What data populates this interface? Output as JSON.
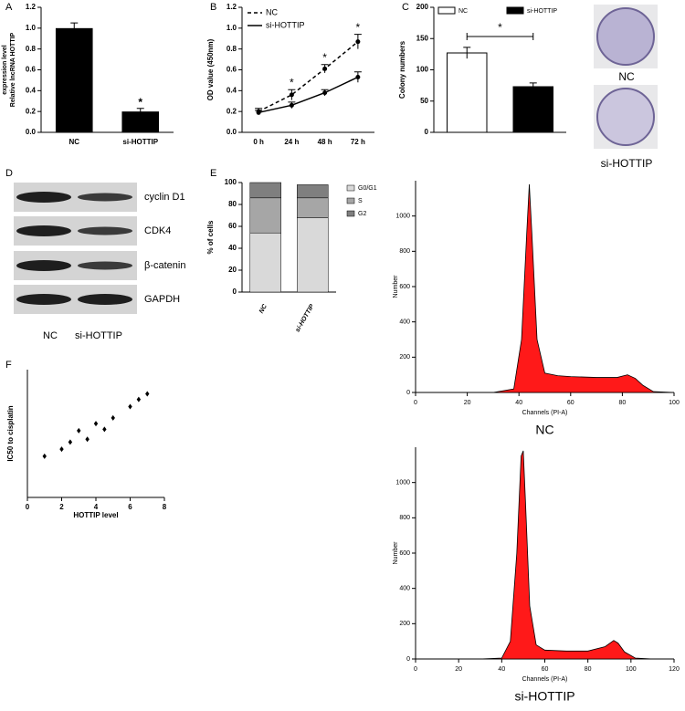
{
  "chart_data": [
    {
      "type": "bar",
      "panel": "A",
      "categories": [
        "NC",
        "si-HOTTIP"
      ],
      "values": [
        1.0,
        0.2
      ],
      "errors": [
        0.05,
        0.03
      ],
      "color": "#000000",
      "ylabel": [
        "Relative lncRNA HOTTIP",
        "expression level"
      ],
      "ylim": [
        0,
        1.2
      ],
      "yticks": [
        {
          "value": 0,
          "label": "0.0"
        },
        0.2,
        0.4,
        0.6,
        0.8,
        {
          "value": 1,
          "label": "1.0"
        },
        1.2
      ],
      "annotations": [
        null,
        "*"
      ]
    },
    {
      "type": "line",
      "panel": "B",
      "categories": [
        "0 h",
        "24 h",
        "48 h",
        "72 h"
      ],
      "series": [
        {
          "name": "NC",
          "color": "#000000",
          "dashed": true,
          "values": [
            0.2,
            0.36,
            0.61,
            0.87
          ],
          "errors": [
            0.03,
            0.05,
            0.04,
            0.07
          ]
        },
        {
          "name": "si-HOTTIP",
          "color": "#000000",
          "dashed": false,
          "values": [
            0.19,
            0.26,
            0.38,
            0.53
          ],
          "errors": [
            0.02,
            0.03,
            0.03,
            0.05
          ]
        }
      ],
      "ylabel": "OD value (450nm)",
      "ylim": [
        0,
        1.2
      ],
      "yticks": [
        {
          "value": 0,
          "label": "0.0"
        },
        0.2,
        0.4,
        0.6,
        0.8,
        {
          "value": 1,
          "label": "1.0"
        },
        1.2
      ],
      "annotations": [
        null,
        "*",
        "*",
        "*"
      ]
    },
    {
      "type": "bar",
      "panel": "C",
      "series": [
        {
          "name": "NC",
          "color": "#ffffff",
          "values": [
            127
          ],
          "errors": [
            9
          ]
        },
        {
          "name": "si-HOTTIP",
          "color": "#000000",
          "values": [
            73
          ],
          "errors": [
            6
          ]
        }
      ],
      "ylabel": "Colony numbers",
      "ylim": [
        0,
        200
      ],
      "yticks": [
        0,
        50,
        100,
        150,
        200
      ],
      "annotation": "*"
    },
    {
      "type": "stacked",
      "panel": "E",
      "categories": [
        "NC",
        "si-HOTTIP"
      ],
      "series": [
        {
          "name": "G0/G1",
          "color": "#d9d9d9",
          "values": [
            54,
            68
          ]
        },
        {
          "name": "S",
          "color": "#a6a6a6",
          "values": [
            32,
            18
          ]
        },
        {
          "name": "G2",
          "color": "#7f7f7f",
          "values": [
            14,
            12
          ]
        }
      ],
      "ylabel": "% of cells",
      "ylim": [
        0,
        100
      ],
      "yticks": [
        0,
        20,
        40,
        60,
        80,
        100
      ]
    },
    {
      "type": "scatter",
      "panel": "F",
      "x": [
        1,
        2,
        2.5,
        3,
        3.5,
        4,
        4.5,
        5,
        6,
        6.5,
        7
      ],
      "values": [
        19,
        24,
        29,
        37,
        31,
        42,
        38,
        46,
        54,
        59,
        63
      ],
      "color": "#000000",
      "xlabel": "HOTTIP level",
      "ylabel": "IC50 to cisplatin",
      "xlim": [
        0,
        8
      ],
      "xticks": [
        0,
        2,
        4,
        6,
        8
      ],
      "ylim": [
        -10,
        80
      ]
    },
    {
      "type": "area",
      "caption": "NC",
      "x": [
        30,
        38,
        41,
        43,
        44,
        45,
        47,
        50,
        55,
        60,
        70,
        78,
        82,
        85,
        88,
        92,
        100
      ],
      "values": [
        0,
        20,
        300,
        900,
        1180,
        900,
        300,
        110,
        95,
        90,
        85,
        85,
        100,
        80,
        40,
        5,
        0
      ],
      "color": "#ff0000",
      "xlabel": "Channels (PI-A)",
      "ylabel": "Number",
      "xlim": [
        0,
        100
      ],
      "xticks": [
        0,
        20,
        40,
        60,
        80,
        100
      ],
      "ylim": [
        0,
        1200
      ],
      "yticks": [
        0,
        200,
        400,
        600,
        800,
        1000
      ]
    },
    {
      "type": "area",
      "caption": "si-HOTTIP",
      "x": [
        30,
        40,
        44,
        47,
        49,
        50,
        51,
        53,
        56,
        60,
        70,
        80,
        88,
        92,
        94,
        97,
        102,
        110
      ],
      "values": [
        0,
        5,
        100,
        600,
        1150,
        1180,
        900,
        300,
        80,
        50,
        45,
        45,
        70,
        105,
        90,
        40,
        5,
        0
      ],
      "color": "#ff0000",
      "xlabel": "Channels (PI-A)",
      "ylabel": "Number",
      "xlim": [
        0,
        120
      ],
      "xticks": [
        0,
        20,
        40,
        60,
        80,
        100,
        120
      ],
      "ylim": [
        0,
        1200
      ],
      "yticks": [
        0,
        200,
        400,
        600,
        800,
        1000
      ]
    }
  ],
  "blot": {
    "panel": "D",
    "bands": [
      "cyclin D1",
      "CDK4",
      "β-catenin",
      "GAPDH"
    ],
    "lanes": [
      "NC",
      "si-HOTTIP"
    ]
  },
  "colony_photos": [
    "NC",
    "si-HOTTIP"
  ]
}
